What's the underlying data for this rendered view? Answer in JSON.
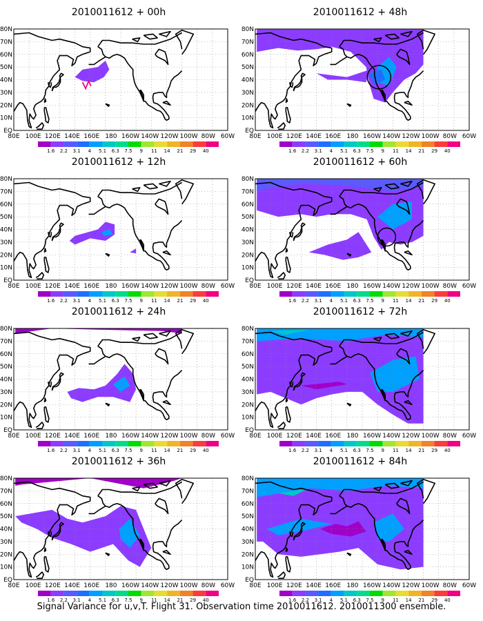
{
  "figure": {
    "footer": "Signal Variance for u,v,T. Flight 31. Observation time 2010011612. 2010011300 ensemble."
  },
  "axes": {
    "lat_labels": [
      "80N",
      "70N",
      "60N",
      "50N",
      "40N",
      "30N",
      "20N",
      "10N",
      "EQ"
    ],
    "lon_labels": [
      "80E",
      "100E",
      "120E",
      "140E",
      "160E",
      "180",
      "160W",
      "140W",
      "120W",
      "100W",
      "80W",
      "60W"
    ]
  },
  "colorbar": {
    "levels": [
      "1.6",
      "2.2",
      "3.1",
      "4",
      "5.1",
      "6.3",
      "7.5",
      "9",
      "11",
      "14",
      "21",
      "29",
      "40"
    ],
    "colors": [
      "#a000c8",
      "#8c3cff",
      "#5a5aff",
      "#1e6eff",
      "#00a0ff",
      "#00c8c8",
      "#00dc8c",
      "#00dc00",
      "#a0e632",
      "#e6dc32",
      "#f0b428",
      "#f08228",
      "#fa3c3c",
      "#f00082"
    ]
  },
  "panels": [
    {
      "id": "00h",
      "title": "2010011612 + 00h",
      "level": 0
    },
    {
      "id": "48h",
      "title": "2010011612 + 48h",
      "level": 4
    },
    {
      "id": "12h",
      "title": "2010011612 + 12h",
      "level": 1
    },
    {
      "id": "60h",
      "title": "2010011612 + 60h",
      "level": 5
    },
    {
      "id": "24h",
      "title": "2010011612 + 24h",
      "level": 2
    },
    {
      "id": "72h",
      "title": "2010011612 + 72h",
      "level": 6
    },
    {
      "id": "36h",
      "title": "2010011612 + 36h",
      "level": 3
    },
    {
      "id": "84h",
      "title": "2010011612 + 84h",
      "level": 7
    }
  ]
}
